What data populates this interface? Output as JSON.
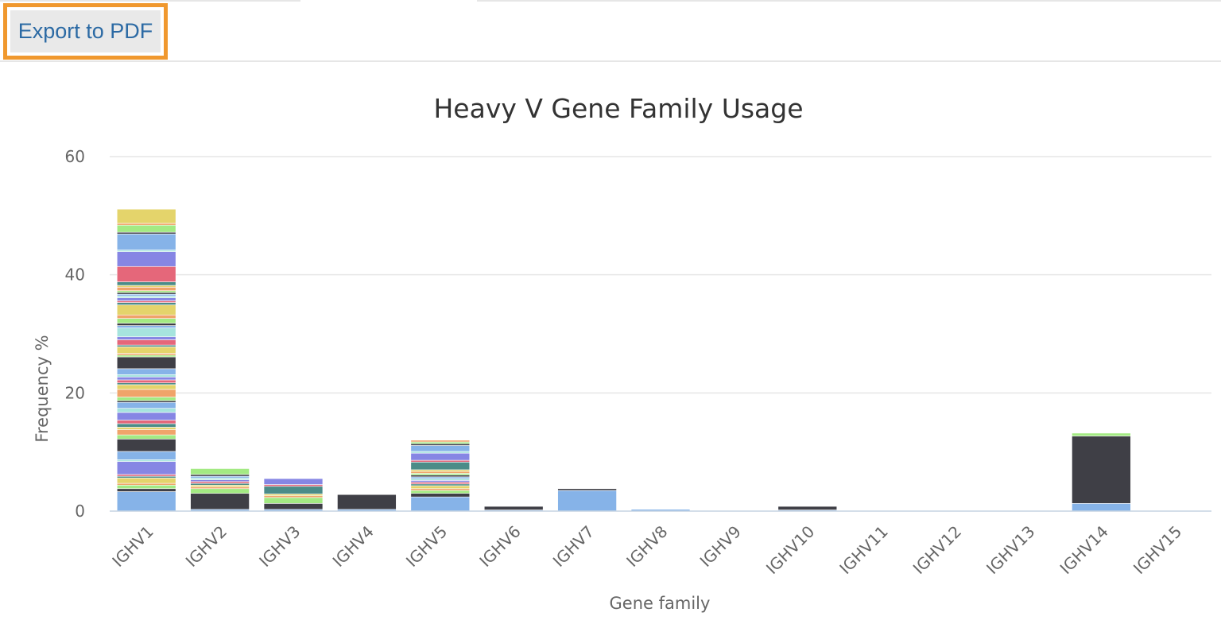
{
  "toolbar": {
    "export_label": "Export to PDF"
  },
  "colors": {
    "accent": "#f0982e",
    "palette": [
      "#86b3e8",
      "#3f3f46",
      "#a3ea83",
      "#f0a46a",
      "#e4d46b",
      "#4b8c88",
      "#e5677a",
      "#8686e4",
      "#a6e4de"
    ]
  },
  "chart_data": {
    "type": "bar",
    "stacked": true,
    "title": "Heavy V Gene Family Usage",
    "xlabel": "Gene family",
    "ylabel": "Frequency %",
    "ylim": [
      0,
      60
    ],
    "yticks": [
      0,
      20,
      40,
      60
    ],
    "grid": true,
    "categories": [
      "IGHV1",
      "IGHV2",
      "IGHV3",
      "IGHV4",
      "IGHV5",
      "IGHV6",
      "IGHV7",
      "IGHV8",
      "IGHV9",
      "IGHV10",
      "IGHV11",
      "IGHV12",
      "IGHV13",
      "IGHV14",
      "IGHV15"
    ],
    "stacks": [
      [
        3.3,
        0.5,
        0.6,
        0.3,
        0.9,
        0.3,
        0.3,
        2.2,
        0.3,
        1.4,
        2.1,
        0.7,
        0.9,
        0.4,
        0.6,
        0.6,
        1.3,
        0.7,
        1.0,
        0.3,
        0.6,
        1.3,
        0.8,
        0.3,
        0.5,
        0.5,
        0.4,
        1.0,
        2.0,
        0.3,
        0.3,
        1.1,
        0.3,
        0.9,
        0.5,
        1.5,
        0.4,
        0.4,
        0.8,
        0.6,
        1.7,
        0.4,
        0.3,
        0.5,
        0.3,
        0.3,
        0.3,
        0.3,
        0.6,
        0.3,
        0.6,
        2.6,
        2.5,
        0.3,
        2.7,
        0.3,
        1.2,
        0.3,
        2.4
      ],
      [
        0.3,
        2.7,
        0.8,
        0.3,
        0.3,
        0.3,
        0.3,
        0.3,
        0.3,
        0.3,
        0.3,
        1.0
      ],
      [
        0.3,
        1.0,
        1.0,
        0.3,
        0.3,
        1.3,
        0.3,
        1.0
      ],
      [
        0.3,
        2.5
      ],
      [
        2.4,
        0.6,
        0.5,
        0.3,
        0.5,
        0.3,
        0.3,
        0.3,
        0.3,
        0.3,
        0.3,
        0.3,
        0.3,
        0.3,
        1.3,
        0.3,
        1.2,
        0.3,
        1.0,
        0.3,
        0.3,
        0.3
      ],
      [
        0.2,
        0.6
      ],
      [
        3.5,
        0.3
      ],
      [
        0.3
      ],
      [],
      [
        0.2,
        0.6
      ],
      [],
      [],
      [],
      [
        1.3,
        11.4,
        0.5
      ],
      []
    ]
  }
}
